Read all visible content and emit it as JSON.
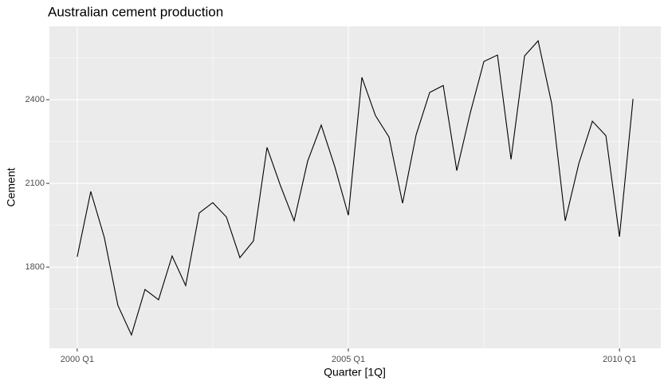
{
  "chart_data": {
    "type": "line",
    "title": "Australian cement production",
    "x_label": "Quarter [1Q]",
    "y_label": "Cement",
    "categories": [
      "2000 Q1",
      null,
      null,
      null,
      null,
      null,
      null,
      null,
      null,
      null,
      null,
      null,
      null,
      null,
      null,
      null,
      null,
      null,
      null,
      null,
      "2005 Q1",
      null,
      null,
      null,
      null,
      null,
      null,
      null,
      null,
      null,
      null,
      null,
      null,
      null,
      null,
      null,
      null,
      null,
      null,
      null,
      "2010 Q1",
      null
    ],
    "series": [
      {
        "name": "Cement",
        "color": "#000000",
        "values": [
          1837,
          2071,
          1906,
          1663,
          1557,
          1720,
          1683,
          1840,
          1734,
          1994,
          2031,
          1980,
          1834,
          1894,
          2229,
          2091,
          1966,
          2180,
          2309,
          2160,
          1986,
          2480,
          2343,
          2266,
          2029,
          2274,
          2426,
          2451,
          2146,
          2354,
          2537,
          2560,
          2186,
          2557,
          2611,
          2386,
          1966,
          2171,
          2323,
          2271,
          1909,
          2403
        ]
      }
    ],
    "ylim": [
      1509,
      2663
    ],
    "yticks": [
      1800,
      2100,
      2400
    ],
    "grid": true
  }
}
